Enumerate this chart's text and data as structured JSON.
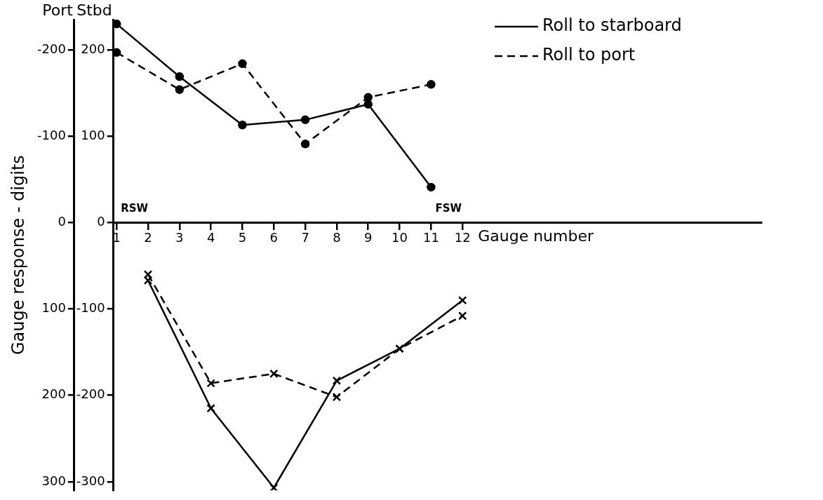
{
  "chart_data": {
    "type": "line",
    "xlabel": "Gauge number",
    "y2label": "Gauge response - digits",
    "xlim": [
      0.9,
      21.5
    ],
    "xticks": [
      1,
      2,
      3,
      4,
      5,
      6,
      7,
      8,
      9,
      10,
      11,
      12
    ],
    "ylim": [
      -310,
      235
    ],
    "yticks": [
      200,
      100,
      0,
      -100,
      -200,
      -300
    ],
    "y2lim": [
      310,
      -235
    ],
    "y2ticks": [
      -200,
      -100,
      0,
      100,
      200,
      300
    ],
    "legend": "top right",
    "annotations": [
      "RSW",
      "FSW",
      "Port",
      "Stbd"
    ],
    "series": [
      {
        "name": "Roll to starboard",
        "color": "#000000",
        "x": [
          1,
          3,
          5,
          7,
          9,
          11
        ],
        "values": [
          230,
          169,
          113,
          119,
          137,
          41
        ],
        "marker": "circle",
        "line_style": "solid"
      },
      {
        "color": "#000000",
        "x": [
          2,
          4,
          6,
          8,
          10,
          12
        ],
        "values": [
          -67,
          -215,
          -307,
          -183,
          -146,
          -90
        ],
        "marker": "cross",
        "line_style": "solid"
      },
      {
        "name": "Roll to port",
        "color": "#000000",
        "x": [
          1,
          3,
          5,
          7,
          9,
          11
        ],
        "values": [
          197,
          154,
          184,
          91,
          145,
          160
        ],
        "marker": "circle",
        "line_style": "dashed"
      },
      {
        "color": "#000000",
        "x": [
          2,
          4,
          6,
          8,
          10,
          12
        ],
        "values": [
          -60,
          -186,
          -175,
          -202,
          -146,
          -108
        ],
        "marker": "cross",
        "line_style": "dashed"
      }
    ]
  }
}
